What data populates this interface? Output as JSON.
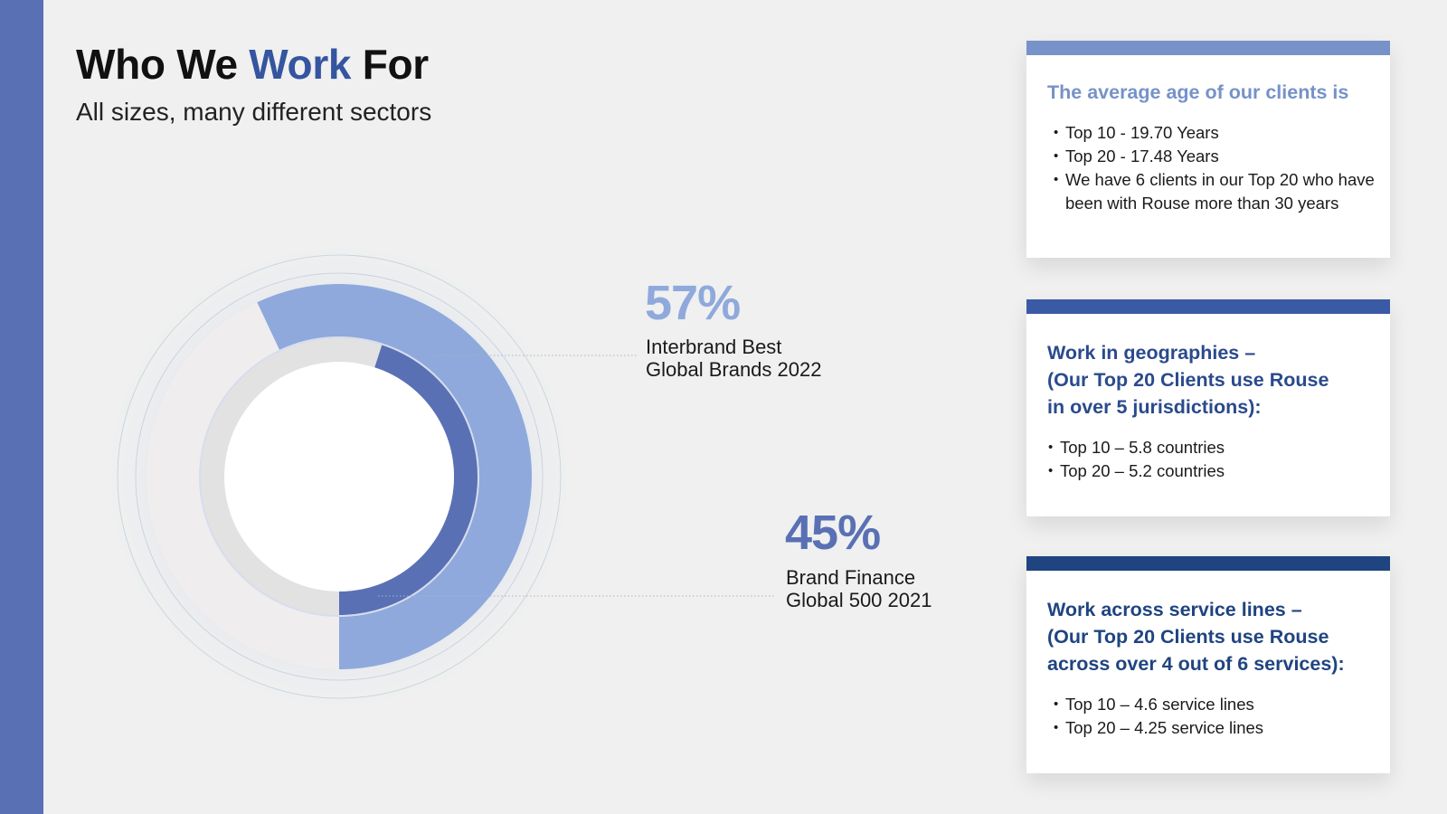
{
  "colors": {
    "sidebar": "#5a70b5",
    "accent": "#3555a0",
    "light_blue": "#8fa9dc",
    "mid_blue": "#5a70b5",
    "dark_blue": "#20427a",
    "card1_bar": "#7692c8",
    "card2_bar": "#3a5aa5",
    "card3_bar": "#1f4480"
  },
  "header": {
    "title_part1": "Who We ",
    "title_highlight": "Work",
    "title_part2": " For",
    "subtitle": "All sizes, many different sectors"
  },
  "chart_data": {
    "type": "donut",
    "unit": "%",
    "series": [
      {
        "name": "Interbrand Best Global Brands 2022",
        "value": 57,
        "label": "57%",
        "label_lines": [
          "Interbrand Best",
          "Global Brands 2022"
        ],
        "color": "#8fa9dc"
      },
      {
        "name": "Brand Finance Global 500 2021",
        "value": 45,
        "label": "45%",
        "label_lines": [
          "Brand Finance",
          "Global 500 2021"
        ],
        "color": "#5a70b5"
      }
    ],
    "range": [
      0,
      100
    ],
    "start_angle": "top",
    "direction": "clockwise"
  },
  "cards": [
    {
      "heading_lines": [
        "The average age of our clients is"
      ],
      "heading_color": "#7692c8",
      "bar_color": "#7692c8",
      "items": [
        "Top 10 - 19.70 Years",
        "Top 20 - 17.48 Years",
        "We have 6 clients in our Top 20 who have been with Rouse more than 30 years"
      ]
    },
    {
      "heading_lines": [
        "Work in geographies –",
        "(Our Top 20 Clients use Rouse",
        "in over 5 jurisdictions):"
      ],
      "heading_color": "#2a4a8c",
      "bar_color": "#3a5aa5",
      "items": [
        "Top 10 – 5.8 countries",
        "Top 20 – 5.2 countries"
      ]
    },
    {
      "heading_lines": [
        "Work across service lines –",
        "(Our Top 20 Clients use Rouse",
        "across over 4 out of 6 services):"
      ],
      "heading_color": "#1f4480",
      "bar_color": "#1f4480",
      "items": [
        "Top 10 – 4.6 service lines",
        "Top 20 – 4.25 service lines"
      ]
    }
  ]
}
